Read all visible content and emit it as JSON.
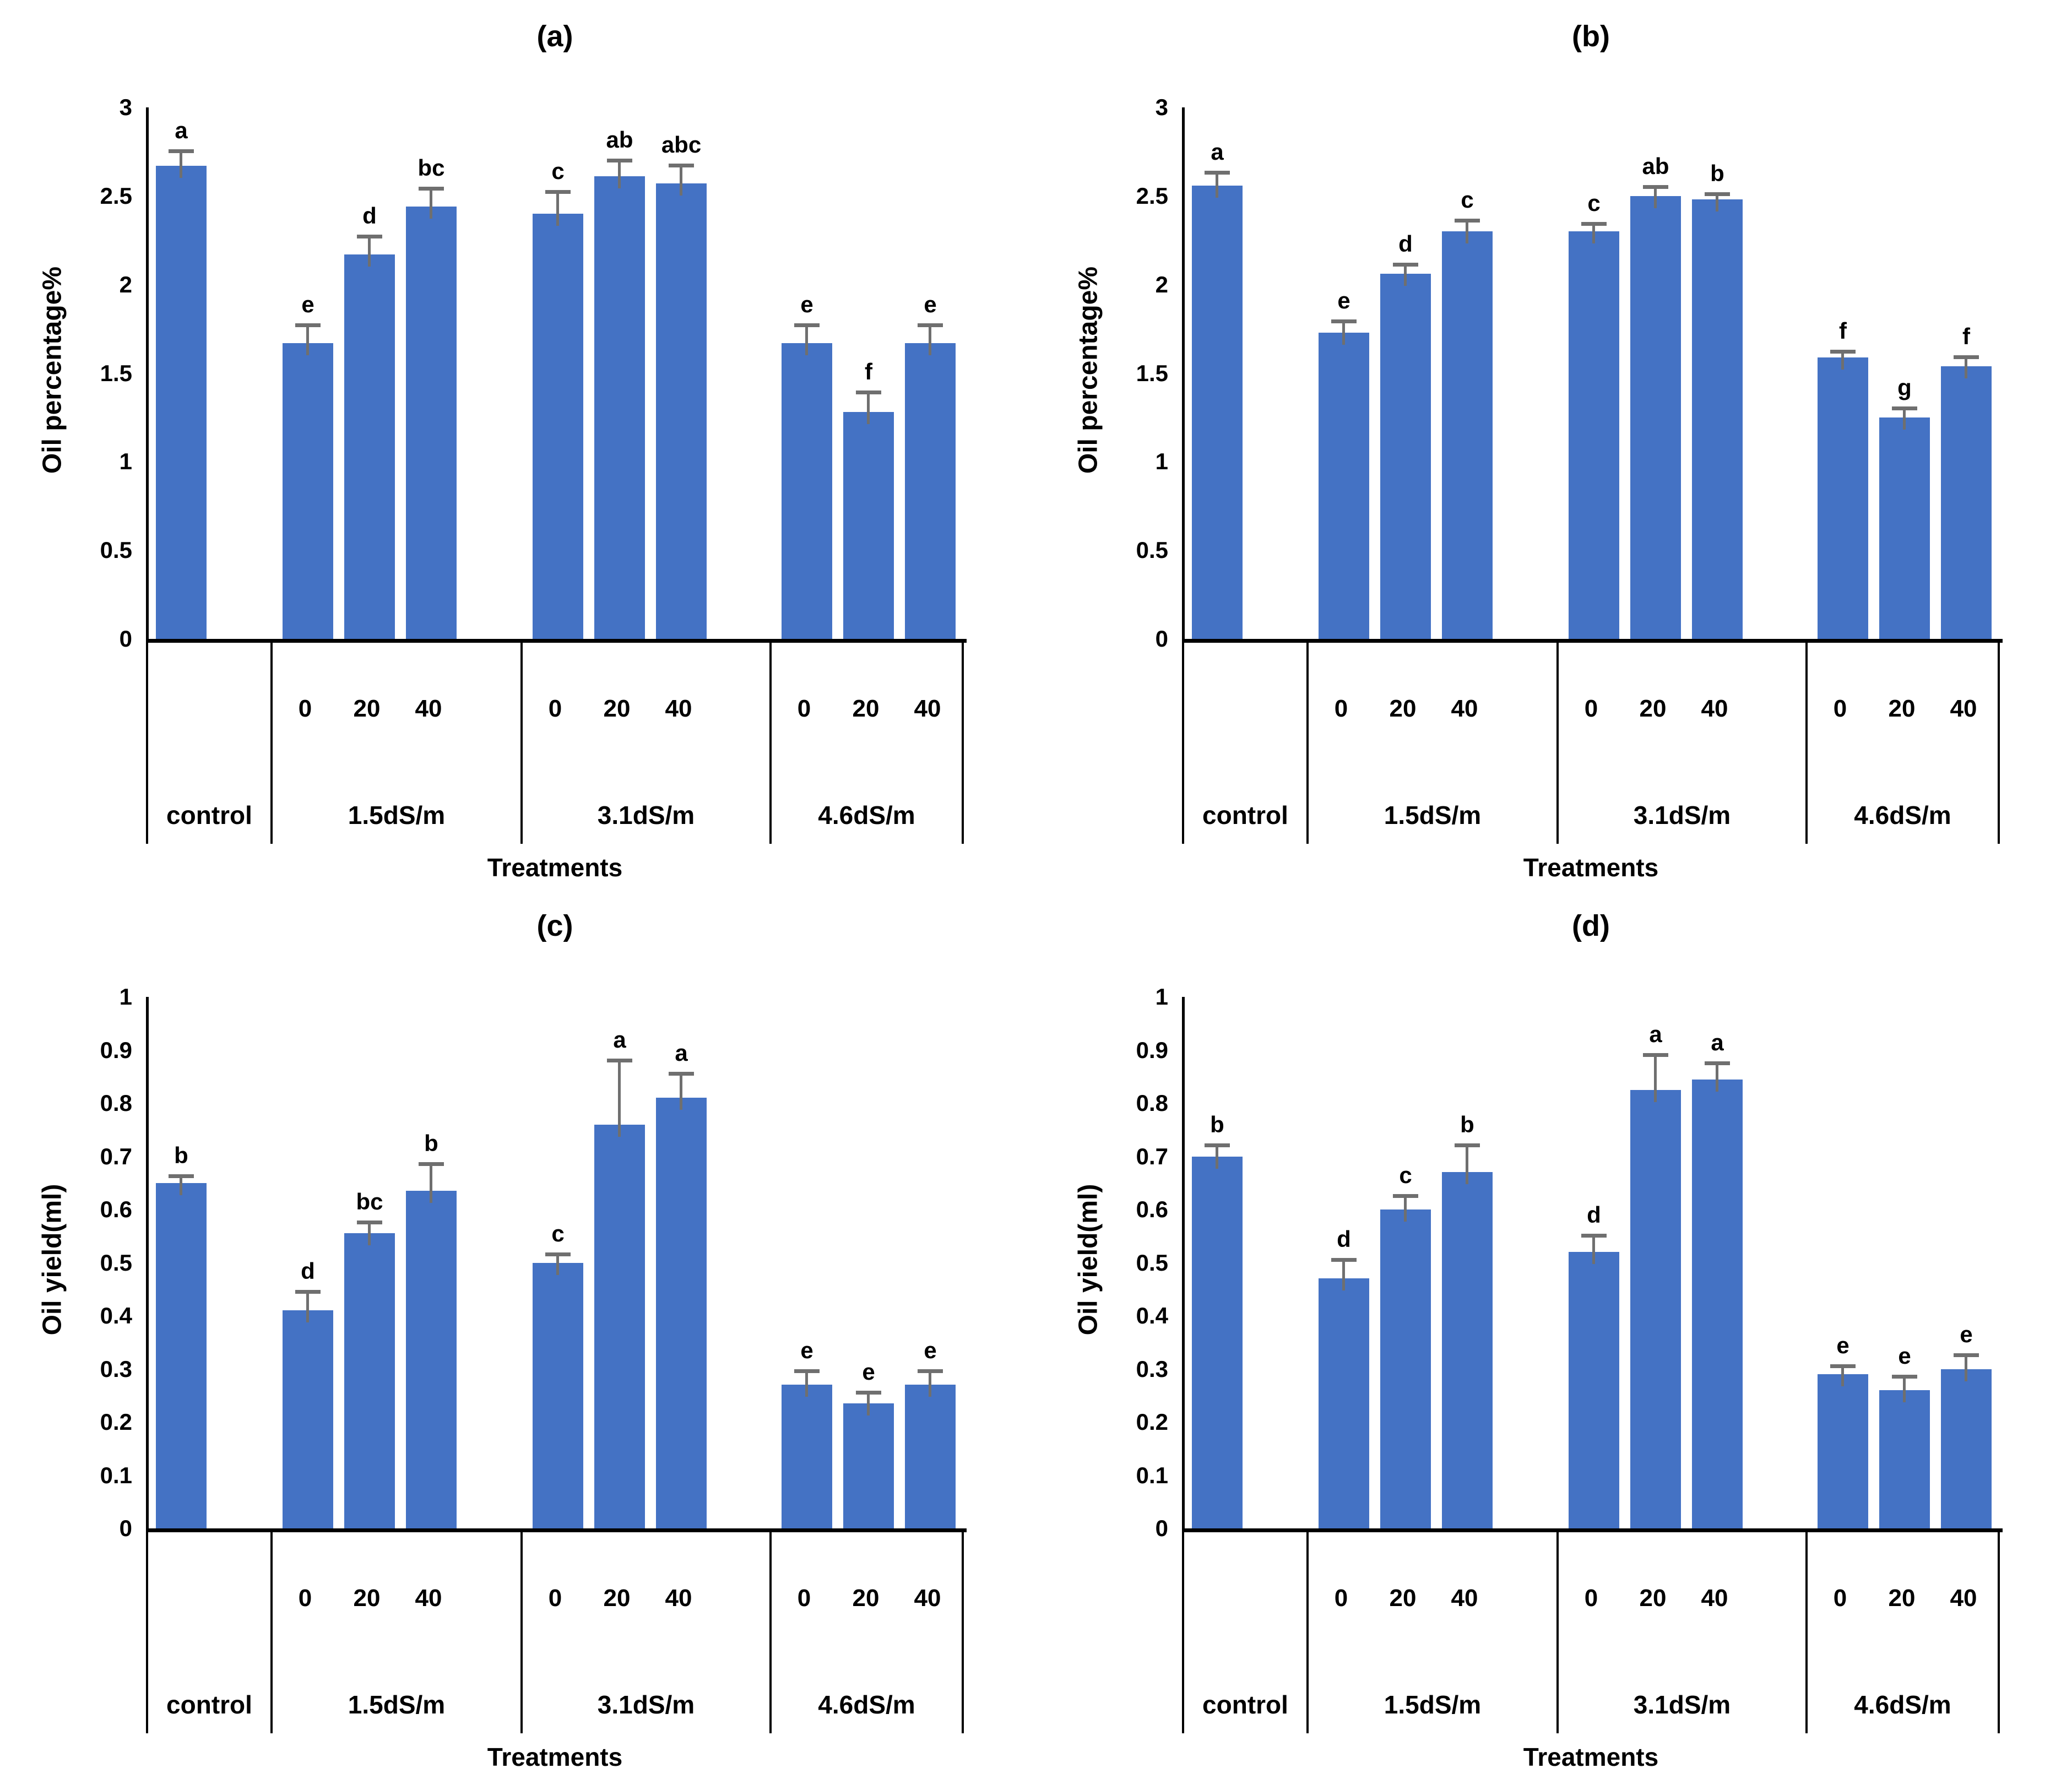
{
  "colors": {
    "bar": "#4472C4",
    "error_bar": "#6f6f6f",
    "axis": "#000000",
    "text": "#000000"
  },
  "chart_data": [
    {
      "id": "a",
      "type": "bar",
      "title": "(a)",
      "ylabel": "Oil percentage%",
      "xlabel": "Treatments",
      "ylim": [
        0,
        3
      ],
      "grid": false,
      "legend": false,
      "ytick_values": [
        0,
        0.5,
        1,
        1.5,
        2,
        2.5,
        3
      ],
      "ytick_labels": [
        "0",
        "0.5",
        "1",
        "1.5",
        "2",
        "2.5",
        "3"
      ],
      "groups": [
        {
          "label": "control",
          "bars": [
            {
              "dose": "",
              "value": 2.67,
              "err": 0.08,
              "letter": "a"
            }
          ]
        },
        {
          "label": "1.5dS/m",
          "bars": [
            {
              "dose": "0",
              "value": 1.67,
              "err": 0.1,
              "letter": "e"
            },
            {
              "dose": "20",
              "value": 2.17,
              "err": 0.1,
              "letter": "d"
            },
            {
              "dose": "40",
              "value": 2.44,
              "err": 0.1,
              "letter": "bc"
            }
          ]
        },
        {
          "label": "3.1dS/m",
          "bars": [
            {
              "dose": "0",
              "value": 2.4,
              "err": 0.12,
              "letter": "c"
            },
            {
              "dose": "20",
              "value": 2.61,
              "err": 0.09,
              "letter": "ab"
            },
            {
              "dose": "40",
              "value": 2.57,
              "err": 0.1,
              "letter": "abc"
            }
          ]
        },
        {
          "label": "4.6dS/m",
          "bars": [
            {
              "dose": "0",
              "value": 1.67,
              "err": 0.1,
              "letter": "e"
            },
            {
              "dose": "20",
              "value": 1.28,
              "err": 0.11,
              "letter": "f"
            },
            {
              "dose": "40",
              "value": 1.67,
              "err": 0.1,
              "letter": "e"
            }
          ]
        }
      ]
    },
    {
      "id": "b",
      "type": "bar",
      "title": "(b)",
      "ylabel": "Oil percentage%",
      "xlabel": "Treatments",
      "ylim": [
        0,
        3
      ],
      "grid": false,
      "legend": false,
      "ytick_values": [
        0,
        0.5,
        1,
        1.5,
        2,
        2.5,
        3
      ],
      "ytick_labels": [
        "0",
        "0.5",
        "1",
        "1.5",
        "2",
        "2.5",
        "3"
      ],
      "groups": [
        {
          "label": "control",
          "bars": [
            {
              "dose": "",
              "value": 2.56,
              "err": 0.07,
              "letter": "a"
            }
          ]
        },
        {
          "label": "1.5dS/m",
          "bars": [
            {
              "dose": "0",
              "value": 1.73,
              "err": 0.06,
              "letter": "e"
            },
            {
              "dose": "20",
              "value": 2.06,
              "err": 0.05,
              "letter": "d"
            },
            {
              "dose": "40",
              "value": 2.3,
              "err": 0.06,
              "letter": "c"
            }
          ]
        },
        {
          "label": "3.1dS/m",
          "bars": [
            {
              "dose": "0",
              "value": 2.3,
              "err": 0.04,
              "letter": "c"
            },
            {
              "dose": "20",
              "value": 2.5,
              "err": 0.05,
              "letter": "ab"
            },
            {
              "dose": "40",
              "value": 2.48,
              "err": 0.03,
              "letter": "b"
            }
          ]
        },
        {
          "label": "4.6dS/m",
          "bars": [
            {
              "dose": "0",
              "value": 1.59,
              "err": 0.03,
              "letter": "f"
            },
            {
              "dose": "20",
              "value": 1.25,
              "err": 0.05,
              "letter": "g"
            },
            {
              "dose": "40",
              "value": 1.54,
              "err": 0.05,
              "letter": "f"
            }
          ]
        }
      ]
    },
    {
      "id": "c",
      "type": "bar",
      "title": "(c)",
      "ylabel": "Oil yield(ml)",
      "xlabel": "Treatments",
      "ylim": [
        0,
        1
      ],
      "grid": false,
      "legend": false,
      "ytick_values": [
        0,
        0.1,
        0.2,
        0.3,
        0.4,
        0.5,
        0.6,
        0.7,
        0.8,
        0.9,
        1
      ],
      "ytick_labels": [
        "0",
        "0.1",
        "0.2",
        "0.3",
        "0.4",
        "0.5",
        "0.6",
        "0.7",
        "0.8",
        "0.9",
        "1"
      ],
      "groups": [
        {
          "label": "control",
          "bars": [
            {
              "dose": "",
              "value": 0.65,
              "err": 0.012,
              "letter": "b"
            }
          ]
        },
        {
          "label": "1.5dS/m",
          "bars": [
            {
              "dose": "0",
              "value": 0.41,
              "err": 0.035,
              "letter": "d"
            },
            {
              "dose": "20",
              "value": 0.555,
              "err": 0.02,
              "letter": "bc"
            },
            {
              "dose": "40",
              "value": 0.635,
              "err": 0.05,
              "letter": "b"
            }
          ]
        },
        {
          "label": "3.1dS/m",
          "bars": [
            {
              "dose": "0",
              "value": 0.5,
              "err": 0.015,
              "letter": "c"
            },
            {
              "dose": "20",
              "value": 0.76,
              "err": 0.12,
              "letter": "a"
            },
            {
              "dose": "40",
              "value": 0.81,
              "err": 0.045,
              "letter": "a"
            }
          ]
        },
        {
          "label": "4.6dS/m",
          "bars": [
            {
              "dose": "0",
              "value": 0.27,
              "err": 0.025,
              "letter": "e"
            },
            {
              "dose": "20",
              "value": 0.235,
              "err": 0.02,
              "letter": "e"
            },
            {
              "dose": "40",
              "value": 0.27,
              "err": 0.025,
              "letter": "e"
            }
          ]
        }
      ]
    },
    {
      "id": "d",
      "type": "bar",
      "title": "(d)",
      "ylabel": "Oil yield(ml)",
      "xlabel": "Treatments",
      "ylim": [
        0,
        1
      ],
      "grid": false,
      "legend": false,
      "ytick_values": [
        0,
        0.1,
        0.2,
        0.3,
        0.4,
        0.5,
        0.6,
        0.7,
        0.8,
        0.9,
        1
      ],
      "ytick_labels": [
        "0",
        "0.1",
        "0.2",
        "0.3",
        "0.4",
        "0.5",
        "0.6",
        "0.7",
        "0.8",
        "0.9",
        "1"
      ],
      "groups": [
        {
          "label": "control",
          "bars": [
            {
              "dose": "",
              "value": 0.7,
              "err": 0.02,
              "letter": "b"
            }
          ]
        },
        {
          "label": "1.5dS/m",
          "bars": [
            {
              "dose": "0",
              "value": 0.47,
              "err": 0.035,
              "letter": "d"
            },
            {
              "dose": "20",
              "value": 0.6,
              "err": 0.025,
              "letter": "c"
            },
            {
              "dose": "40",
              "value": 0.67,
              "err": 0.05,
              "letter": "b"
            }
          ]
        },
        {
          "label": "3.1dS/m",
          "bars": [
            {
              "dose": "0",
              "value": 0.52,
              "err": 0.03,
              "letter": "d"
            },
            {
              "dose": "20",
              "value": 0.825,
              "err": 0.065,
              "letter": "a"
            },
            {
              "dose": "40",
              "value": 0.845,
              "err": 0.03,
              "letter": "a"
            }
          ]
        },
        {
          "label": "4.6dS/m",
          "bars": [
            {
              "dose": "0",
              "value": 0.29,
              "err": 0.015,
              "letter": "e"
            },
            {
              "dose": "20",
              "value": 0.26,
              "err": 0.025,
              "letter": "e"
            },
            {
              "dose": "40",
              "value": 0.3,
              "err": 0.025,
              "letter": "e"
            }
          ]
        }
      ]
    }
  ]
}
